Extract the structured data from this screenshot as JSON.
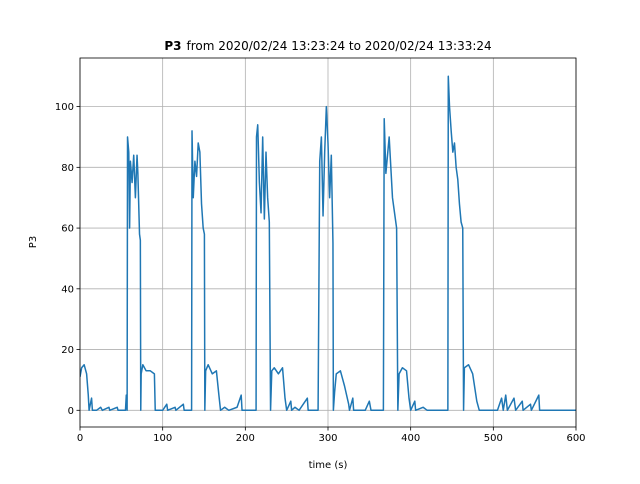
{
  "chart_data": {
    "type": "line",
    "title_bold": "P3",
    "title": "from 2020/02/24 13:23:24 to 2020/02/24 13:33:24",
    "x_label": "time (s)",
    "y_label": "P3",
    "xlim": [
      0,
      600
    ],
    "ylim": [
      -5.5,
      116
    ],
    "xticks": [
      0,
      100,
      200,
      300,
      400,
      500,
      600
    ],
    "yticks": [
      0,
      20,
      40,
      60,
      80,
      100
    ],
    "grid": true,
    "series": [
      {
        "color": "#1f77b4",
        "x": [
          0,
          2,
          5,
          8,
          10,
          11,
          14,
          15,
          20,
          25,
          27,
          35,
          36,
          45,
          46,
          55,
          56,
          57,
          57.5,
          59,
          60,
          61,
          63,
          65,
          67,
          69,
          70,
          72,
          73,
          73.5,
          74,
          76,
          80,
          85,
          90,
          91,
          100,
          105,
          106,
          115,
          116,
          125,
          126,
          135,
          135.5,
          137,
          139,
          141,
          143,
          145,
          147,
          149,
          150.5,
          151,
          152,
          155,
          160,
          165,
          168,
          170,
          175,
          180,
          190,
          195,
          196,
          205,
          213,
          213.5,
          215,
          217,
          219,
          221,
          223,
          225,
          227,
          229,
          230.5,
          232,
          235,
          240,
          245,
          248,
          250,
          255,
          256,
          260,
          265,
          275,
          276,
          288,
          290,
          292,
          294,
          296,
          298,
          300,
          302,
          304,
          306,
          306.5,
          308,
          310,
          315,
          320,
          325,
          326,
          330,
          331,
          345,
          350,
          352,
          360,
          367,
          368,
          370,
          372,
          374,
          376,
          378,
          380,
          383,
          384.5,
          386,
          390,
          395,
          398,
          400,
          405,
          406,
          415,
          420,
          430,
          440,
          445,
          445.5,
          447,
          449,
          451,
          453,
          455,
          457,
          459,
          461,
          463,
          464,
          465,
          470,
          475,
          480,
          483,
          490,
          505,
          510,
          512,
          515,
          517,
          525,
          527,
          535,
          536,
          545,
          546,
          555,
          556,
          565,
          580,
          600
        ],
        "values": [
          11,
          14,
          15,
          12,
          5,
          0,
          4,
          0,
          0,
          1,
          0,
          1,
          0,
          1,
          0,
          0,
          5,
          0,
          90,
          85,
          60,
          82,
          75,
          84,
          70,
          84,
          78,
          58,
          56,
          0,
          12,
          15,
          13,
          13,
          12,
          0,
          0,
          2,
          0,
          1,
          0,
          2,
          0,
          0,
          92,
          70,
          82,
          77,
          88,
          85,
          68,
          60,
          58,
          0,
          13,
          15,
          12,
          13,
          5,
          0,
          1,
          0,
          1,
          5,
          0,
          0,
          0,
          90,
          94,
          75,
          65,
          90,
          63,
          85,
          70,
          62,
          0,
          13,
          14,
          12,
          14,
          4,
          0,
          3,
          0,
          1,
          0,
          4,
          0,
          0,
          82,
          90,
          64,
          85,
          100,
          88,
          70,
          84,
          55,
          0,
          6,
          12,
          13,
          8,
          2,
          0,
          4,
          0,
          0,
          3,
          0,
          0,
          0,
          96,
          78,
          84,
          90,
          80,
          70,
          66,
          60,
          0,
          12,
          14,
          13,
          4,
          0,
          3,
          0,
          1,
          0,
          0,
          0,
          0,
          110,
          100,
          92,
          85,
          88,
          80,
          76,
          68,
          62,
          60,
          0,
          14,
          15,
          12,
          3,
          0,
          0,
          0,
          4,
          0,
          5,
          0,
          4,
          0,
          3,
          0,
          2,
          0,
          5,
          0,
          0,
          0,
          0
        ]
      }
    ]
  }
}
